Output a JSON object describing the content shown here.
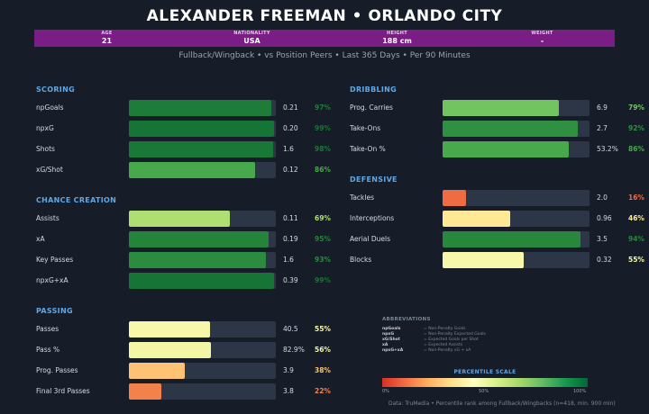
{
  "header": {
    "title": "ALEXANDER FREEMAN  •  ORLANDO CITY",
    "info": [
      {
        "label": "AGE",
        "value": "21"
      },
      {
        "label": "NATIONALITY",
        "value": "USA"
      },
      {
        "label": "HEIGHT",
        "value": "188 cm"
      },
      {
        "label": "WEIGHT",
        "value": "-"
      }
    ],
    "subtitle": "Fullback/Wingback  •  vs Position Peers  •  Last 365 Days  •  Per 90 Minutes"
  },
  "sections": [
    {
      "id": "scoring",
      "title": "SCORING",
      "metrics": [
        {
          "name": "npGoals",
          "value": "0.21",
          "pct_label": "97%",
          "pct": 97
        },
        {
          "name": "npxG",
          "value": "0.20",
          "pct_label": "99%",
          "pct": 99
        },
        {
          "name": "Shots",
          "value": "1.6",
          "pct_label": "98%",
          "pct": 98
        },
        {
          "name": "xG/Shot",
          "value": "0.12",
          "pct_label": "86%",
          "pct": 86
        }
      ]
    },
    {
      "id": "chance-creation",
      "title": "CHANCE CREATION",
      "metrics": [
        {
          "name": "Assists",
          "value": "0.11",
          "pct_label": "69%",
          "pct": 69
        },
        {
          "name": "xA",
          "value": "0.19",
          "pct_label": "95%",
          "pct": 95
        },
        {
          "name": "Key Passes",
          "value": "1.6",
          "pct_label": "93%",
          "pct": 93
        },
        {
          "name": "npxG+xA",
          "value": "0.39",
          "pct_label": "99%",
          "pct": 99
        }
      ]
    },
    {
      "id": "passing",
      "title": "PASSING",
      "metrics": [
        {
          "name": "Passes",
          "value": "40.5",
          "pct_label": "55%",
          "pct": 55
        },
        {
          "name": "Pass %",
          "value": "82.9%",
          "pct_label": "56%",
          "pct": 56
        },
        {
          "name": "Prog. Passes",
          "value": "3.9",
          "pct_label": "38%",
          "pct": 38
        },
        {
          "name": "Final 3rd Passes",
          "value": "3.8",
          "pct_label": "22%",
          "pct": 22
        }
      ]
    },
    {
      "id": "dribbling",
      "title": "DRIBBLING",
      "metrics": [
        {
          "name": "Prog. Carries",
          "value": "6.9",
          "pct_label": "79%",
          "pct": 79
        },
        {
          "name": "Take-Ons",
          "value": "2.7",
          "pct_label": "92%",
          "pct": 92
        },
        {
          "name": "Take-On %",
          "value": "53.2%",
          "pct_label": "86%",
          "pct": 86
        }
      ]
    },
    {
      "id": "defensive",
      "title": "DEFENSIVE",
      "metrics": [
        {
          "name": "Tackles",
          "value": "2.0",
          "pct_label": "16%",
          "pct": 16
        },
        {
          "name": "Interceptions",
          "value": "0.96",
          "pct_label": "46%",
          "pct": 46
        },
        {
          "name": "Aerial Duels",
          "value": "3.5",
          "pct_label": "94%",
          "pct": 94
        },
        {
          "name": "Blocks",
          "value": "0.32",
          "pct_label": "55%",
          "pct": 55
        }
      ]
    }
  ],
  "abbreviations": {
    "title": "ABBREVIATIONS",
    "items": [
      {
        "key": "npGoals",
        "text": "= Non-Penalty Goals"
      },
      {
        "key": "npxG",
        "text": "= Non-Penalty Expected Goals"
      },
      {
        "key": "xG/Shot",
        "text": "= Expected Goals per Shot"
      },
      {
        "key": "xA",
        "text": "= Expected Assists"
      },
      {
        "key": "npxG+xA",
        "text": "= Non-Penalty xG + xA"
      }
    ]
  },
  "scale": {
    "title": "PERCENTILE SCALE",
    "ticks": [
      "0%",
      "50%",
      "100%"
    ]
  },
  "footer": "Data: TruMedia  •  Percentile rank among Fullback/Wingbacks (n=418, min. 900 min)",
  "colors": {
    "background": "#161d28",
    "info_bar": "#7a1e86",
    "section_title": "#5fa8e8",
    "track": "#2c3646"
  }
}
